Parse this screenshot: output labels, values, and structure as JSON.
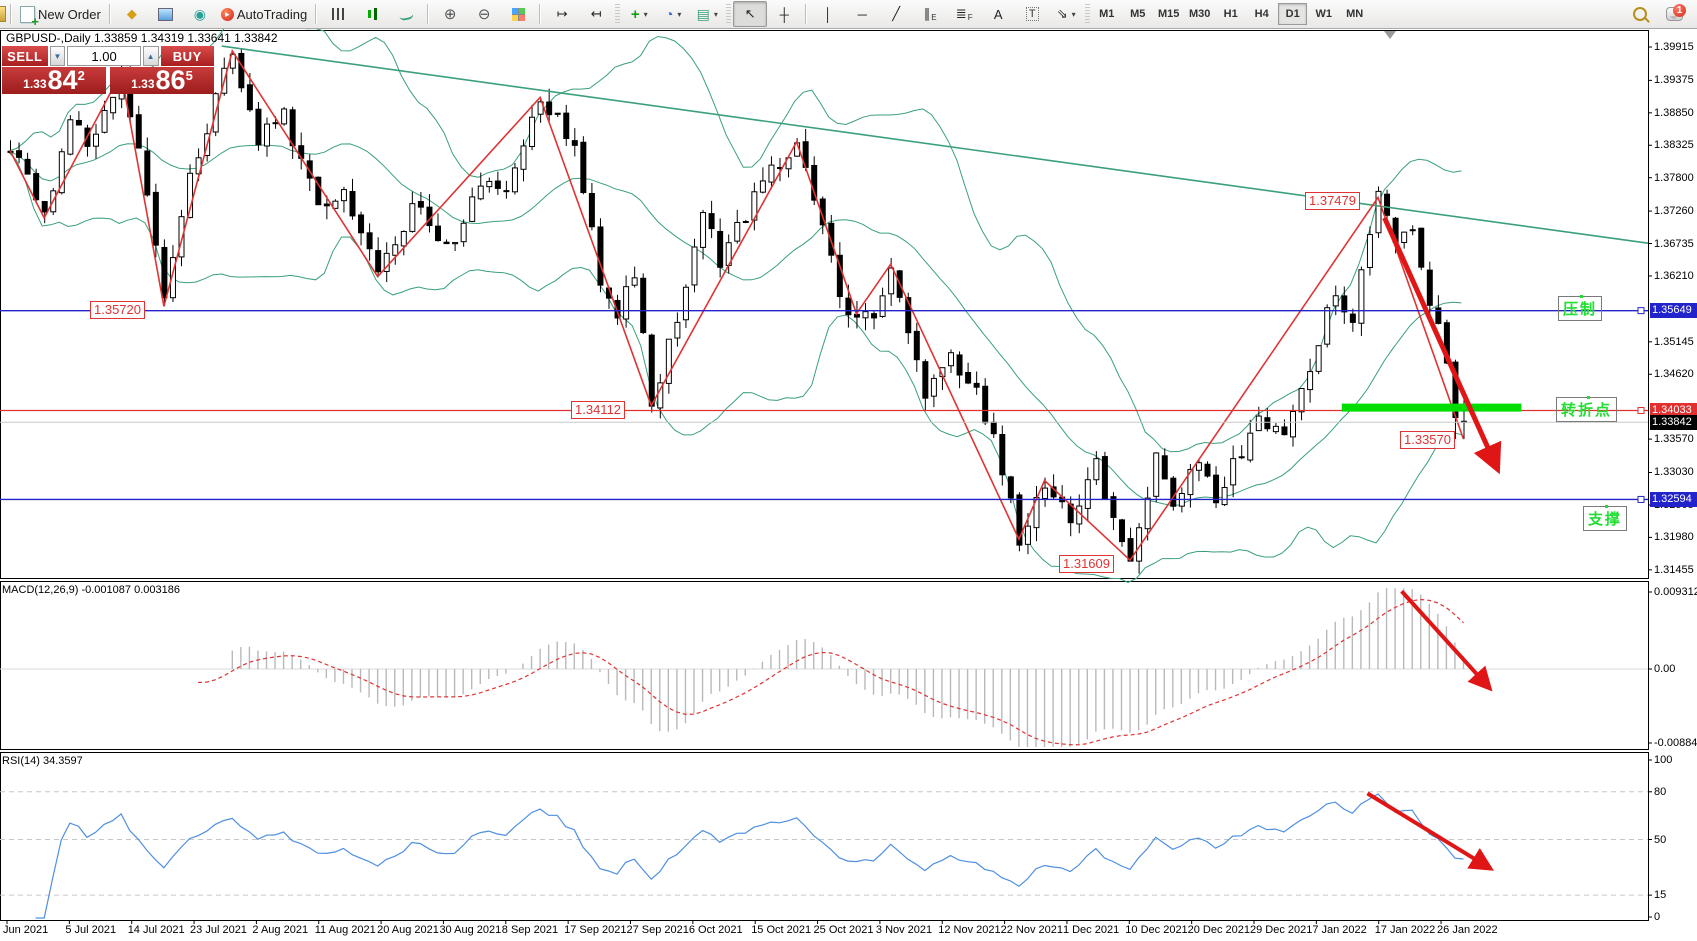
{
  "toolbar": {
    "new_order": "New Order",
    "autotrading": "AutoTrading",
    "timeframes": [
      "M1",
      "M5",
      "M15",
      "M30",
      "H1",
      "H4",
      "D1",
      "W1",
      "MN"
    ],
    "active_timeframe": "D1",
    "notification_badge": "1"
  },
  "icons": {
    "new_order_plus": "+",
    "ticket": "◆",
    "autotrading_play": "▸",
    "zoom_in": "⊕",
    "zoom_out": "⊖",
    "auto_scroll": "↦",
    "chart_shift": "↤",
    "add_indicator": "+",
    "periods_clock": "◔",
    "templates": "▤",
    "dropdown": "▾",
    "cursor": "↖",
    "crosshair": "┼",
    "vertical_line": "│",
    "horizontal_line": "─",
    "trendline": "╱",
    "channel": "∥",
    "channel_sub": "E",
    "fibonacci": "≣",
    "fibonacci_sub": "F",
    "text": "A",
    "text_label": "T",
    "arrows_tool": "⇘",
    "volume_down": "▼",
    "volume_up": "▲",
    "shift_marker": "▼"
  },
  "chart": {
    "title": "GBPUSD-,Daily 1.33859 1.34319 1.33641 1.33842",
    "trade_panel": {
      "sell": "SELL",
      "buy": "BUY",
      "volume": "1.00",
      "sell_prefix": "1.33",
      "sell_big": "84",
      "sell_sup": "2",
      "buy_prefix": "1.33",
      "buy_big": "86",
      "buy_sup": "5"
    },
    "cn_labels": {
      "resistance": "压制",
      "turning_point": "转折点",
      "support": "支撑"
    },
    "price_flags": {
      "f1": "1.35720",
      "f2": "1.34112",
      "f3": "1.31609",
      "f4": "1.37479",
      "f5": "1.33570"
    },
    "axis_tags": {
      "resistance": "1.35649",
      "turning": "1.34033",
      "current": "1.33842",
      "support": "1.32594"
    },
    "price_axis": [
      "1.39915",
      "1.39375",
      "1.38850",
      "1.38325",
      "1.37800",
      "1.37260",
      "1.36735",
      "1.36210",
      "1.35145",
      "1.34620",
      "1.33570",
      "1.33030",
      "1.32505",
      "1.31980",
      "1.31455"
    ],
    "dates": [
      "Jun 2021",
      "5 Jul 2021",
      "14 Jul 2021",
      "23 Jul 2021",
      "2 Aug 2021",
      "11 Aug 2021",
      "20 Aug 2021",
      "30 Aug 2021",
      "8 Sep 2021",
      "17 Sep 2021",
      "27 Sep 2021",
      "6 Oct 2021",
      "15 Oct 2021",
      "25 Oct 2021",
      "3 Nov 2021",
      "12 Nov 2021",
      "22 Nov 2021",
      "1 Dec 2021",
      "10 Dec 2021",
      "20 Dec 2021",
      "29 Dec 2021",
      "7 Jan 2022",
      "17 Jan 2022",
      "26 Jan 2022"
    ]
  },
  "macd_panel": {
    "label": "MACD(12,26,9) -0.001087 0.003186",
    "axis": [
      "0.009312",
      "0.00",
      "-0.008848"
    ]
  },
  "rsi_panel": {
    "label": "RSI(14) 34.3597",
    "axis": [
      "100",
      "80",
      "50",
      "15",
      "0"
    ]
  },
  "colors": {
    "candle": "#000000",
    "bollinger": "#3aa07a",
    "zigzag": "#e03333",
    "level_blue": "#2323cc",
    "level_red": "#e03030",
    "current_gray": "#c8c8c8",
    "green_bar": "#00dd00",
    "macd_bar": "#b9b9b9",
    "signal": "#e03333",
    "rsi_line": "#4f8fe0",
    "arrow": "#e01616",
    "tag_black": "#000000"
  },
  "chart_data": {
    "type": "candlestick",
    "symbol": "GBPUSD-",
    "timeframe": "Daily",
    "visible_range": {
      "from": "Jun 2021",
      "to": "26 Jan 2022"
    },
    "price_axis_range": [
      1.31455,
      1.39915
    ],
    "last_candle": {
      "o": 1.33859,
      "h": 1.34319,
      "l": 1.33641,
      "c": 1.33842
    },
    "key_levels": {
      "resistance": 1.35649,
      "turning_point": 1.34033,
      "support": 1.32594,
      "current": 1.33842
    },
    "swing_annotations": [
      1.3572,
      1.34112,
      1.31609,
      1.37479,
      1.3357
    ],
    "zigzag": [
      [
        0,
        1.3824
      ],
      [
        4,
        1.3715
      ],
      [
        13,
        1.395
      ],
      [
        18,
        1.3572
      ],
      [
        26,
        1.3985
      ],
      [
        43,
        1.362
      ],
      [
        62,
        1.391
      ],
      [
        75,
        1.3411
      ],
      [
        92,
        1.3838
      ],
      [
        99,
        1.356
      ],
      [
        103,
        1.364
      ],
      [
        118,
        1.3195
      ],
      [
        121,
        1.329
      ],
      [
        131,
        1.3161
      ],
      [
        160,
        1.3748
      ],
      [
        170,
        1.3357
      ]
    ],
    "price_path": [
      [
        0,
        1.3824
      ],
      [
        2,
        1.379
      ],
      [
        4,
        1.3715
      ],
      [
        7,
        1.388
      ],
      [
        9,
        1.383
      ],
      [
        13,
        1.395
      ],
      [
        16,
        1.375
      ],
      [
        18,
        1.3572
      ],
      [
        21,
        1.378
      ],
      [
        26,
        1.3985
      ],
      [
        29,
        1.384
      ],
      [
        32,
        1.3882
      ],
      [
        36,
        1.373
      ],
      [
        39,
        1.377
      ],
      [
        43,
        1.362
      ],
      [
        46,
        1.37
      ],
      [
        48,
        1.3745
      ],
      [
        51,
        1.366
      ],
      [
        55,
        1.378
      ],
      [
        58,
        1.3755
      ],
      [
        62,
        1.391
      ],
      [
        64,
        1.387
      ],
      [
        66,
        1.384
      ],
      [
        69,
        1.362
      ],
      [
        71,
        1.356
      ],
      [
        73,
        1.362
      ],
      [
        75,
        1.3415
      ],
      [
        78,
        1.356
      ],
      [
        81,
        1.3725
      ],
      [
        83,
        1.365
      ],
      [
        86,
        1.372
      ],
      [
        89,
        1.379
      ],
      [
        92,
        1.3838
      ],
      [
        95,
        1.37
      ],
      [
        97,
        1.358
      ],
      [
        99,
        1.356
      ],
      [
        101,
        1.3565
      ],
      [
        103,
        1.364
      ],
      [
        105,
        1.352
      ],
      [
        107,
        1.343
      ],
      [
        110,
        1.3495
      ],
      [
        113,
        1.344
      ],
      [
        115,
        1.335
      ],
      [
        118,
        1.32
      ],
      [
        121,
        1.329
      ],
      [
        124,
        1.3215
      ],
      [
        127,
        1.331
      ],
      [
        129,
        1.323
      ],
      [
        131,
        1.3165
      ],
      [
        134,
        1.333
      ],
      [
        136,
        1.324
      ],
      [
        139,
        1.333
      ],
      [
        141,
        1.326
      ],
      [
        144,
        1.334
      ],
      [
        146,
        1.34
      ],
      [
        149,
        1.3365
      ],
      [
        152,
        1.347
      ],
      [
        155,
        1.36
      ],
      [
        157,
        1.3555
      ],
      [
        160,
        1.3744
      ],
      [
        162,
        1.369
      ],
      [
        164,
        1.37
      ],
      [
        166,
        1.358
      ],
      [
        168,
        1.348
      ],
      [
        169,
        1.34
      ],
      [
        170,
        1.33842
      ]
    ],
    "trendline": {
      "from_idx": 25,
      "p1": 1.3993,
      "p2_at_axis": 1.3674
    },
    "highlight_zone": {
      "price": 1.3408,
      "from_idx": 156,
      "to_idx": 177
    },
    "trend_arrows": [
      {
        "panel": "main",
        "from": {
          "idx": 161,
          "p": 1.3715
        },
        "to": {
          "idx": 174,
          "p": 1.3315
        }
      },
      {
        "panel": "macd",
        "from": {
          "idx": 163,
          "v": 0.0094
        },
        "to": {
          "idx": 173,
          "v": -0.002
        }
      },
      {
        "panel": "rsi",
        "from": {
          "idx": 159,
          "v": 79
        },
        "to": {
          "idx": 173,
          "v": 33
        }
      }
    ],
    "indicators": [
      {
        "name": "Bollinger Bands",
        "period": 20,
        "deviation": 2
      },
      {
        "name": "MACD",
        "params": [
          12,
          26,
          9
        ],
        "current_values": [
          -0.001087,
          0.003186
        ],
        "axis_range": [
          -0.008848,
          0.009312
        ]
      },
      {
        "name": "RSI",
        "period": 14,
        "current_value": 34.3597,
        "levels": [
          15,
          50,
          80
        ]
      }
    ]
  }
}
